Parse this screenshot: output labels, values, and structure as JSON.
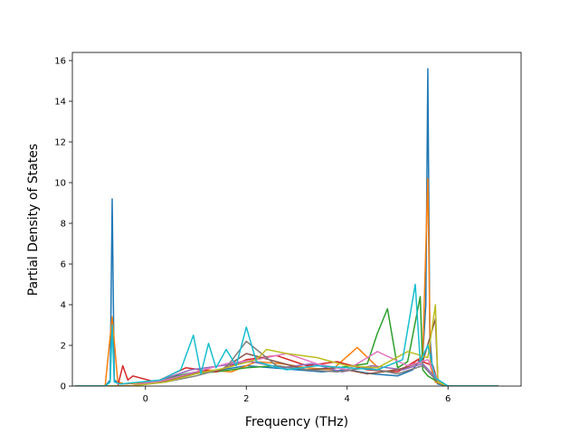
{
  "chart_data": {
    "type": "line",
    "title": "",
    "xlabel": "Frequency (THz)",
    "ylabel": "Partial Density of States",
    "xlim": [
      -1.45,
      7.45
    ],
    "ylim": [
      0,
      16.4
    ],
    "grid": false,
    "legend": "none",
    "x_ticks": [
      0,
      2,
      4,
      6
    ],
    "y_ticks": [
      0,
      2,
      4,
      6,
      8,
      10,
      12,
      14,
      16
    ],
    "x_tick_labels": [
      "0",
      "2",
      "4",
      "6"
    ],
    "y_tick_labels": [
      "0",
      "2",
      "4",
      "6",
      "8",
      "10",
      "12",
      "14",
      "16"
    ],
    "colors": [
      "#1f77b4",
      "#ff7f0e",
      "#2ca02c",
      "#d62728",
      "#9467bd",
      "#8c564b",
      "#e377c2",
      "#7f7f7f",
      "#bcbd22",
      "#17becf"
    ],
    "series": [
      {
        "x": [
          -1.4,
          -0.8,
          -0.7,
          -0.66,
          -0.62,
          -0.5,
          0.2,
          0.6,
          1.0,
          1.5,
          2.0,
          2.5,
          3.0,
          3.5,
          4.0,
          4.5,
          5.0,
          5.3,
          5.5,
          5.56,
          5.6,
          5.64,
          5.7,
          5.8,
          6.0,
          7.0
        ],
        "y": [
          0,
          0,
          0.3,
          9.2,
          0.3,
          0.1,
          0.2,
          0.5,
          0.7,
          0.8,
          1.0,
          0.9,
          0.8,
          0.7,
          0.8,
          0.6,
          0.5,
          0.8,
          1.5,
          4.0,
          15.6,
          2.5,
          0.5,
          0.1,
          0,
          0
        ]
      },
      {
        "x": [
          -1.4,
          -0.8,
          -0.66,
          -0.55,
          -0.4,
          0.2,
          0.7,
          1.2,
          1.7,
          2.2,
          2.7,
          3.2,
          3.7,
          4.2,
          4.7,
          5.2,
          5.5,
          5.6,
          5.65,
          5.75,
          6.0,
          7.0
        ],
        "y": [
          0,
          0,
          3.4,
          0.2,
          0.1,
          0.2,
          0.4,
          0.8,
          0.7,
          1.2,
          1.1,
          0.9,
          0.8,
          1.9,
          0.7,
          0.9,
          1.5,
          10.2,
          1.0,
          0.2,
          0,
          0
        ]
      },
      {
        "x": [
          -1.4,
          -0.3,
          0.2,
          0.8,
          1.4,
          2.0,
          2.6,
          3.2,
          3.8,
          4.4,
          4.6,
          4.8,
          5.0,
          5.2,
          5.45,
          5.5,
          5.6,
          5.8,
          6.0,
          7.0
        ],
        "y": [
          0,
          0,
          0.2,
          0.6,
          0.7,
          0.9,
          1.0,
          0.8,
          0.9,
          1.1,
          2.6,
          3.8,
          0.9,
          1.2,
          4.4,
          0.8,
          0.5,
          0.2,
          0,
          0
        ]
      },
      {
        "x": [
          -1.4,
          -0.55,
          -0.45,
          -0.35,
          -0.25,
          0.2,
          0.8,
          1.4,
          2.0,
          2.6,
          3.2,
          3.8,
          4.4,
          5.0,
          5.4,
          5.7,
          5.8,
          6.0,
          7.0
        ],
        "y": [
          0,
          0,
          1.0,
          0.3,
          0.5,
          0.2,
          0.9,
          0.7,
          1.3,
          1.5,
          1.0,
          1.2,
          0.8,
          0.7,
          1.3,
          1.0,
          0.2,
          0,
          0
        ]
      },
      {
        "x": [
          -1.4,
          -0.3,
          0.3,
          0.9,
          1.5,
          2.1,
          2.7,
          3.3,
          3.9,
          4.5,
          5.1,
          5.5,
          5.8,
          6.0,
          7.0
        ],
        "y": [
          0,
          0,
          0.3,
          0.8,
          1.0,
          1.2,
          0.9,
          1.1,
          0.7,
          1.0,
          0.8,
          1.1,
          0.3,
          0,
          0
        ]
      },
      {
        "x": [
          -1.4,
          -0.3,
          0.3,
          0.9,
          1.5,
          2.0,
          2.6,
          3.2,
          3.8,
          4.4,
          5.0,
          5.5,
          5.75,
          5.8,
          6.0,
          7.0
        ],
        "y": [
          0,
          0,
          0.2,
          0.6,
          0.8,
          1.6,
          1.2,
          0.8,
          0.9,
          0.6,
          0.8,
          1.2,
          3.3,
          0.3,
          0,
          0
        ]
      },
      {
        "x": [
          -1.4,
          -0.3,
          0.4,
          1.0,
          1.6,
          2.2,
          2.8,
          3.4,
          4.0,
          4.6,
          5.2,
          5.6,
          5.8,
          6.0,
          7.0
        ],
        "y": [
          0,
          0,
          0.3,
          0.7,
          1.1,
          1.3,
          1.6,
          1.1,
          0.8,
          1.7,
          1.0,
          1.3,
          0.3,
          0,
          0
        ]
      },
      {
        "x": [
          -1.4,
          -0.3,
          0.4,
          1.0,
          1.6,
          2.0,
          2.6,
          3.2,
          3.8,
          4.4,
          5.0,
          5.5,
          5.8,
          6.0,
          7.0
        ],
        "y": [
          0,
          0,
          0.2,
          0.5,
          0.9,
          2.2,
          1.0,
          0.8,
          0.7,
          0.9,
          0.6,
          1.0,
          0.2,
          0,
          0
        ]
      },
      {
        "x": [
          -1.4,
          -0.3,
          0.4,
          1.0,
          1.6,
          2.2,
          2.4,
          2.8,
          3.4,
          4.0,
          4.6,
          5.2,
          5.6,
          5.75,
          5.8,
          6.0,
          7.0
        ],
        "y": [
          0,
          0,
          0.2,
          0.6,
          0.9,
          1.3,
          1.8,
          1.6,
          1.4,
          1.0,
          0.9,
          1.7,
          1.4,
          4.0,
          0.2,
          0,
          0
        ]
      },
      {
        "x": [
          -1.4,
          -0.8,
          -0.7,
          -0.66,
          -0.62,
          -0.5,
          0.3,
          0.7,
          0.95,
          1.1,
          1.25,
          1.4,
          1.6,
          1.8,
          2.0,
          2.2,
          2.8,
          3.4,
          4.0,
          4.6,
          5.1,
          5.35,
          5.45,
          5.6,
          5.75,
          6.0,
          7.0
        ],
        "y": [
          0,
          0,
          0.2,
          3.0,
          0.2,
          0.1,
          0.3,
          0.8,
          2.5,
          0.6,
          2.1,
          0.9,
          1.8,
          1.0,
          2.9,
          1.2,
          0.8,
          1.0,
          0.9,
          0.8,
          1.3,
          5.0,
          1.2,
          2.0,
          0.4,
          0,
          0
        ]
      }
    ]
  }
}
